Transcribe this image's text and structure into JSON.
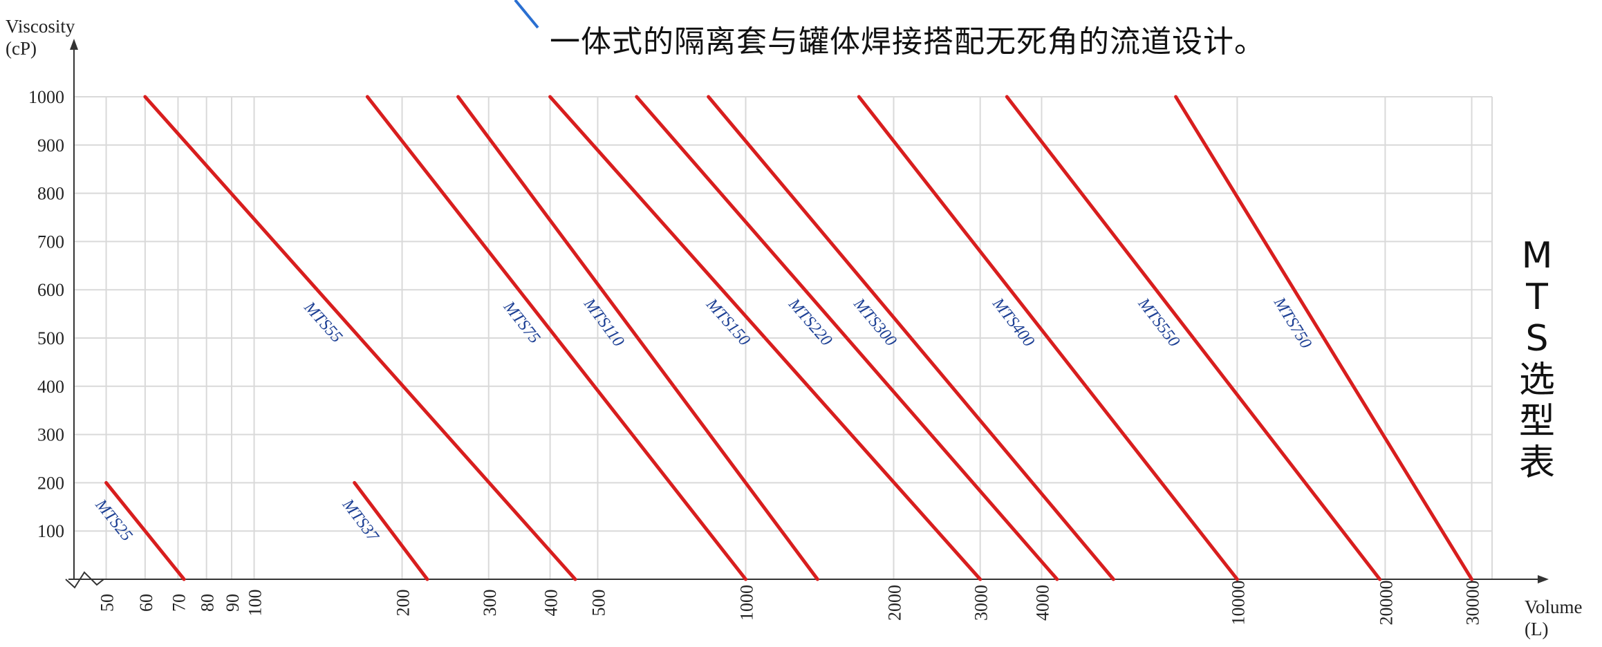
{
  "header": {
    "caption": "一体式的隔离套与罐体焊接搭配无死角的流道设计。"
  },
  "side_title": [
    "M",
    "T",
    "S",
    "选",
    "型",
    "表"
  ],
  "chart_data": {
    "type": "line",
    "title": "MTS选型表",
    "ylabel": "Viscosity\n(cP)",
    "xlabel": "Volume\n(L)",
    "x_scale": "log",
    "xlim": [
      43,
      33000
    ],
    "ylim": [
      0,
      1000
    ],
    "y_ticks": [
      100,
      200,
      300,
      400,
      500,
      600,
      700,
      800,
      900,
      1000
    ],
    "x_ticks": [
      50,
      60,
      70,
      80,
      90,
      100,
      200,
      300,
      400,
      500,
      1000,
      2000,
      3000,
      4000,
      10000,
      20000,
      30000
    ],
    "grid": true,
    "line_color": "#d81e1e",
    "label_color": "#1c3f94",
    "series": [
      {
        "name": "MTS25",
        "x": [
          50,
          72
        ],
        "y": [
          200,
          0
        ]
      },
      {
        "name": "MTS37",
        "x": [
          160,
          225
        ],
        "y": [
          200,
          0
        ]
      },
      {
        "name": "MTS55",
        "x": [
          60,
          450
        ],
        "y": [
          1000,
          0
        ]
      },
      {
        "name": "MTS75",
        "x": [
          170,
          1000
        ],
        "y": [
          1000,
          0
        ]
      },
      {
        "name": "MTS110",
        "x": [
          260,
          1400
        ],
        "y": [
          1000,
          0
        ]
      },
      {
        "name": "MTS150",
        "x": [
          400,
          3000
        ],
        "y": [
          1000,
          0
        ]
      },
      {
        "name": "MTS220",
        "x": [
          600,
          4300
        ],
        "y": [
          1000,
          0
        ]
      },
      {
        "name": "MTS300",
        "x": [
          840,
          5600
        ],
        "y": [
          1000,
          0
        ]
      },
      {
        "name": "MTS400",
        "x": [
          1700,
          10000
        ],
        "y": [
          1000,
          0
        ]
      },
      {
        "name": "MTS550",
        "x": [
          3400,
          19500
        ],
        "y": [
          1000,
          0
        ]
      },
      {
        "name": "MTS750",
        "x": [
          7500,
          30000
        ],
        "y": [
          1000,
          0
        ]
      }
    ]
  }
}
